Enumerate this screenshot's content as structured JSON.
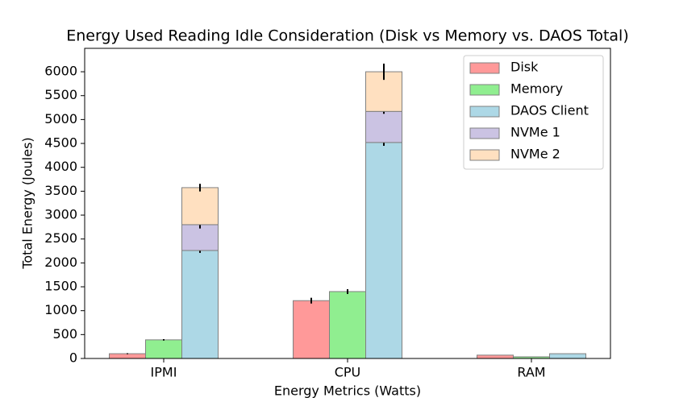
{
  "chart_data": {
    "type": "bar",
    "title": "Energy Used Reading Idle Consideration (Disk vs Memory vs. DAOS Total)",
    "x_label": "Energy Metrics (Watts)",
    "y_label": "Total Energy (Joules)",
    "categories": [
      "IPMI",
      "CPU",
      "RAM"
    ],
    "series": [
      {
        "name": "Disk",
        "color": "#ff9999",
        "values": [
          100,
          1210,
          70
        ],
        "errors": [
          10,
          60,
          0
        ]
      },
      {
        "name": "Memory",
        "color": "#90ee90",
        "values": [
          390,
          1400,
          35
        ],
        "errors": [
          15,
          50,
          0
        ]
      },
      {
        "name": "DAOS Client",
        "color": "#add8e6",
        "values": [
          2260,
          4520,
          100
        ],
        "errors": [
          50,
          70,
          0
        ]
      },
      {
        "name": "NVMe 1",
        "color": "#cbc3e3",
        "values": [
          540,
          650,
          0
        ],
        "errors": [
          80,
          50,
          0
        ],
        "stacked": true
      },
      {
        "name": "NVMe 2",
        "color": "#ffe0c0",
        "values": [
          775,
          830,
          0
        ],
        "errors": [
          80,
          170,
          0
        ],
        "stacked": true
      }
    ],
    "ylim": [
      0,
      6490
    ],
    "yticks": [
      0,
      500,
      1000,
      1500,
      2000,
      2500,
      3000,
      3500,
      4000,
      4500,
      5000,
      5500,
      6000
    ],
    "legend": "upper right"
  }
}
